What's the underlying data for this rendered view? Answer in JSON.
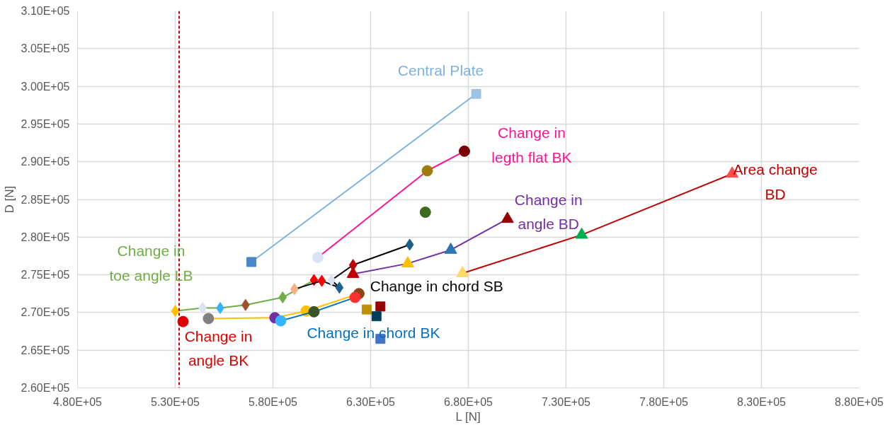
{
  "chart_data": {
    "type": "scatter",
    "xlabel": "L [N]",
    "ylabel": "D [N]",
    "grid": true,
    "xlim": [
      480000,
      880000
    ],
    "ylim": [
      260000,
      310000
    ],
    "xticks": [
      {
        "value": 480000,
        "label": "4.80E+05"
      },
      {
        "value": 530000,
        "label": "5.30E+05"
      },
      {
        "value": 580000,
        "label": "5.80E+05"
      },
      {
        "value": 630000,
        "label": "6.30E+05"
      },
      {
        "value": 680000,
        "label": "6.80E+05"
      },
      {
        "value": 730000,
        "label": "7.30E+05"
      },
      {
        "value": 780000,
        "label": "7.80E+05"
      },
      {
        "value": 830000,
        "label": "8.30E+05"
      },
      {
        "value": 880000,
        "label": "8.80E+05"
      }
    ],
    "yticks": [
      {
        "value": 260000,
        "label": "2.60E+05"
      },
      {
        "value": 265000,
        "label": "2.65E+05"
      },
      {
        "value": 270000,
        "label": "2.70E+05"
      },
      {
        "value": 275000,
        "label": "2.75E+05"
      },
      {
        "value": 280000,
        "label": "2.80E+05"
      },
      {
        "value": 285000,
        "label": "2.85E+05"
      },
      {
        "value": 290000,
        "label": "2.90E+05"
      },
      {
        "value": 295000,
        "label": "2.95E+05"
      },
      {
        "value": 300000,
        "label": "3.00E+05"
      },
      {
        "value": 305000,
        "label": "3.05E+05"
      },
      {
        "value": 310000,
        "label": "3.10E+05"
      }
    ],
    "ref_lines": [
      {
        "axis": "x",
        "value": 532000,
        "color": "#c00000",
        "line_style": "dashed"
      }
    ],
    "series": [
      {
        "name": "Central Plate",
        "type": "line",
        "color": "#7fb2e0",
        "marker": "square",
        "colors": [
          "#4a86c8",
          "#9dc3e6"
        ],
        "x": [
          569000,
          684000
        ],
        "values": [
          276700,
          299000
        ]
      },
      {
        "name": "Change in\nlegth flat BK",
        "type": "line",
        "color": "#ff1493",
        "marker": "circle",
        "colors": [
          "#dae3f3",
          "#9c7c0c",
          "#7b0000"
        ],
        "x": [
          603000,
          659000,
          678000
        ],
        "values": [
          277300,
          288800,
          291400
        ]
      },
      {
        "color": "#3d6b1e",
        "marker": "circle",
        "x": [
          658000
        ],
        "values": [
          283300
        ]
      },
      {
        "name": "Change in\ntoe angle LB",
        "type": "line",
        "color": "#70ad47",
        "marker": "diamond",
        "colors": [
          "#ffc000",
          "#dae3f3",
          "#33b5ff",
          "#a0522d",
          "#70ad47",
          "#ff0000"
        ],
        "x": [
          530000,
          544000,
          553000,
          566000,
          585000,
          601000
        ],
        "values": [
          270200,
          270600,
          270600,
          271000,
          272000,
          274300
        ]
      },
      {
        "name": "Change in\nangle BD",
        "type": "line",
        "color": "#7030a0",
        "marker": "triangle",
        "colors": [
          "#c00000",
          "#ffc000",
          "#2e75b6",
          "#990000"
        ],
        "x": [
          621000,
          649000,
          671000,
          700000
        ],
        "values": [
          275100,
          276500,
          278300,
          282400
        ]
      },
      {
        "name": "Change in chord SB",
        "type": "line",
        "color": "#000000",
        "marker": "diamond",
        "colors": [
          "#f4b183",
          "#ff0000",
          "#1f6391",
          "#dae3f3",
          "#c00000",
          "#1f5f8b"
        ],
        "x": [
          591000,
          605000,
          614000,
          610000,
          621000,
          650000
        ],
        "values": [
          273100,
          274200,
          273300,
          274300,
          276300,
          279000
        ]
      },
      {
        "name": "Area change\nBD",
        "type": "line",
        "color": "#c00000",
        "marker": "triangle",
        "colors": [
          "#ffd966",
          "#00b050",
          "#ff4b4b"
        ],
        "x": [
          677000,
          738000,
          815000
        ],
        "values": [
          275200,
          280300,
          288400
        ]
      },
      {
        "name": "Change in\nangle BK",
        "color": "#e00000",
        "marker": "circle",
        "x": [
          534000
        ],
        "values": [
          268800
        ]
      },
      {
        "type": "line",
        "color": "#ffc000",
        "marker": "circle",
        "colors": [
          "#808080",
          "#7030a0",
          "#ffc000",
          "#8b4513"
        ],
        "x": [
          547000,
          581000,
          597000,
          624000
        ],
        "values": [
          269200,
          269300,
          270200,
          272500
        ]
      },
      {
        "name": "Change in chord BK",
        "type": "line",
        "color": "#0070c0",
        "marker": "circle",
        "colors": [
          "#33b5ff",
          "#375623",
          "#ff3030"
        ],
        "x": [
          584000,
          601000,
          622000
        ],
        "values": [
          268900,
          270100,
          272000
        ]
      },
      {
        "color": "#bf9000",
        "marker": "square",
        "colors": [
          "#bf9000",
          "#990000",
          "#003f5c",
          "#4472c4"
        ],
        "x": [
          628000,
          635000,
          633000,
          635000
        ],
        "values": [
          270400,
          270800,
          269500,
          266500
        ]
      }
    ]
  }
}
